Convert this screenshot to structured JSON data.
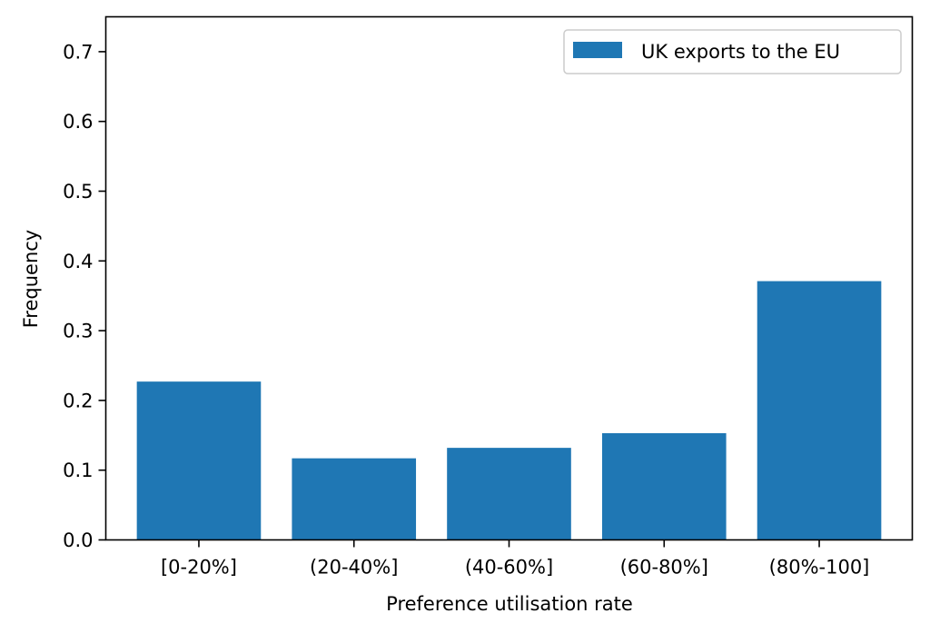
{
  "chart_data": {
    "type": "bar",
    "title": "",
    "xlabel": "Preference utilisation rate",
    "ylabel": "Frequency",
    "categories": [
      "[0-20%]",
      "(20-40%]",
      "(40-60%]",
      "(60-80%]",
      "(80%-100]"
    ],
    "series": [
      {
        "name": "UK exports to the EU",
        "values": [
          0.227,
          0.117,
          0.132,
          0.153,
          0.371
        ],
        "color": "#1f77b4"
      }
    ],
    "ylim": [
      0,
      0.75
    ],
    "yticks": [
      "0.0",
      "0.1",
      "0.2",
      "0.3",
      "0.4",
      "0.5",
      "0.6",
      "0.7"
    ],
    "grid": false,
    "legend_position": "top-right"
  }
}
